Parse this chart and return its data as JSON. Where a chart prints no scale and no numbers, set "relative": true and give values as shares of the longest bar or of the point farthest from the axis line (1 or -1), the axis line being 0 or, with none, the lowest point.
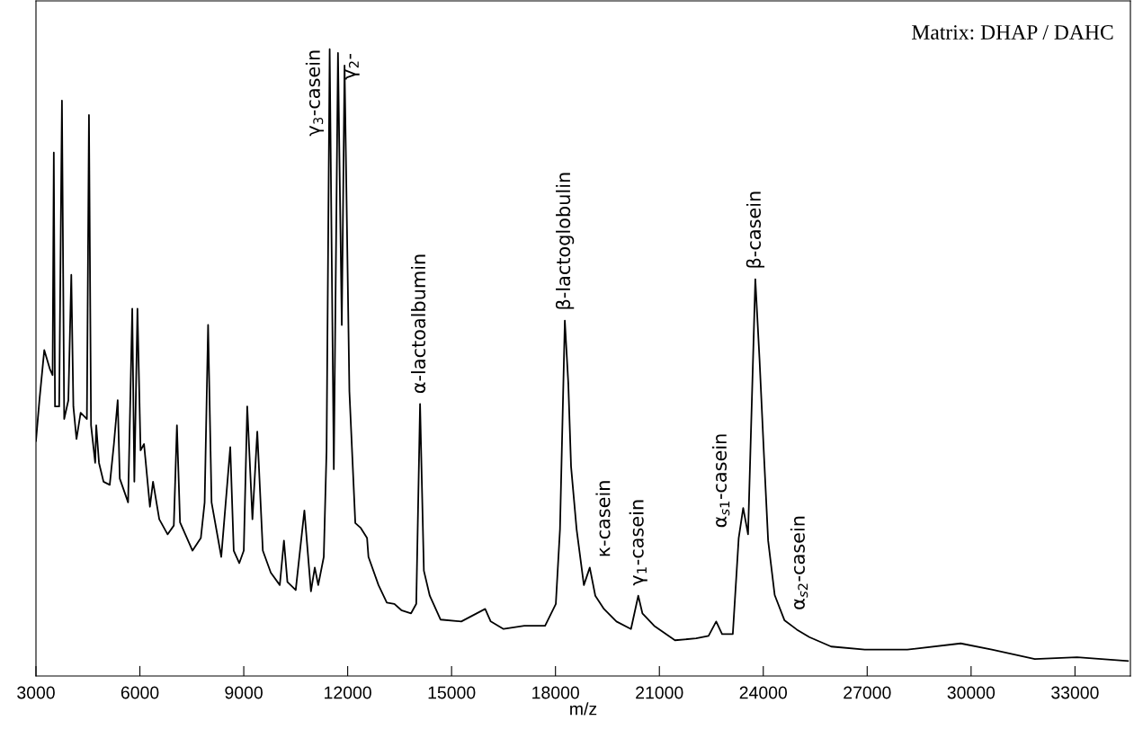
{
  "chart_data": {
    "type": "line",
    "relative": true,
    "xlabel": "m/z",
    "color": "#000000",
    "xlim": [
      3000,
      34600
    ],
    "xticks": [
      3000,
      6000,
      9000,
      12000,
      15000,
      18000,
      21000,
      24000,
      27000,
      30000,
      33000
    ],
    "tick_labels": "x",
    "grid": false,
    "marker": "none",
    "line_style": "solid",
    "x": [
      3000,
      3100,
      3240,
      3400,
      3480,
      3515,
      3550,
      3670,
      3750,
      3815,
      3935,
      4020,
      4080,
      4170,
      4290,
      4470,
      4530,
      4590,
      4710,
      4740,
      4820,
      4950,
      5130,
      5250,
      5360,
      5420,
      5660,
      5780,
      5840,
      5930,
      6020,
      6120,
      6290,
      6380,
      6560,
      6800,
      6980,
      7070,
      7160,
      7520,
      7760,
      7870,
      7970,
      8070,
      8350,
      8610,
      8710,
      8870,
      9000,
      9100,
      9250,
      9390,
      9550,
      9780,
      10040,
      10160,
      10260,
      10500,
      10750,
      10940,
      11050,
      11150,
      11310,
      11390,
      11480,
      11600,
      11720,
      11830,
      11910,
      12050,
      12220,
      12380,
      12560,
      12600,
      12890,
      13130,
      13350,
      13550,
      13830,
      13980,
      14090,
      14200,
      14370,
      14680,
      15280,
      15970,
      16130,
      16500,
      17100,
      17700,
      18010,
      18130,
      18270,
      18370,
      18450,
      18610,
      18820,
      18990,
      19150,
      19400,
      19760,
      20180,
      20390,
      20510,
      20850,
      21450,
      22060,
      22420,
      22640,
      22810,
      23120,
      23290,
      23420,
      23560,
      23770,
      23890,
      24020,
      24140,
      24330,
      24610,
      24970,
      25330,
      25960,
      26930,
      28160,
      29700,
      30600,
      31840,
      33060,
      34530
    ],
    "values": [
      0.375,
      0.44,
      0.52,
      0.49,
      0.48,
      0.835,
      0.43,
      0.43,
      0.918,
      0.41,
      0.44,
      0.64,
      0.43,
      0.378,
      0.42,
      0.41,
      0.895,
      0.4,
      0.34,
      0.4,
      0.34,
      0.31,
      0.305,
      0.37,
      0.44,
      0.315,
      0.277,
      0.586,
      0.31,
      0.586,
      0.36,
      0.37,
      0.27,
      0.31,
      0.25,
      0.226,
      0.24,
      0.4,
      0.245,
      0.2,
      0.22,
      0.277,
      0.56,
      0.277,
      0.19,
      0.365,
      0.2,
      0.18,
      0.2,
      0.43,
      0.25,
      0.39,
      0.2,
      0.165,
      0.145,
      0.216,
      0.15,
      0.137,
      0.264,
      0.135,
      0.173,
      0.145,
      0.19,
      0.36,
      1.0,
      0.33,
      0.994,
      0.56,
      0.974,
      0.454,
      0.244,
      0.236,
      0.22,
      0.19,
      0.145,
      0.117,
      0.115,
      0.105,
      0.1,
      0.115,
      0.434,
      0.168,
      0.128,
      0.09,
      0.087,
      0.107,
      0.087,
      0.075,
      0.08,
      0.08,
      0.115,
      0.234,
      0.567,
      0.467,
      0.334,
      0.234,
      0.145,
      0.173,
      0.128,
      0.107,
      0.087,
      0.075,
      0.128,
      0.1,
      0.08,
      0.057,
      0.06,
      0.064,
      0.087,
      0.067,
      0.067,
      0.22,
      0.268,
      0.226,
      0.633,
      0.507,
      0.352,
      0.216,
      0.129,
      0.089,
      0.074,
      0.062,
      0.047,
      0.042,
      0.042,
      0.052,
      0.042,
      0.027,
      0.03,
      0.024
    ],
    "annotations": [
      {
        "text": "γ$_{3}$-casein",
        "x": 11480,
        "y": 1.0
      },
      {
        "text": "γ$_{2}$-",
        "x": 11720,
        "y": 0.994
      },
      {
        "text": "α-lactoalbumin",
        "x": 14090,
        "y": 0.434
      },
      {
        "text": "β-lactoglobulin",
        "x": 18270,
        "y": 0.567
      },
      {
        "text": "κ-casein",
        "x": 18990,
        "y": 0.173
      },
      {
        "text": "γ$_{1}$-casein",
        "x": 20390,
        "y": 0.128
      },
      {
        "text": "α$_{s1}$-casein",
        "x": 23290,
        "y": 0.22
      },
      {
        "text": "β-casein",
        "x": 23770,
        "y": 0.633
      },
      {
        "text": "α$_{s2}$-casein",
        "x": 24610,
        "y": 0.089
      },
      "Matrix: DHAP / DAHC"
    ]
  }
}
